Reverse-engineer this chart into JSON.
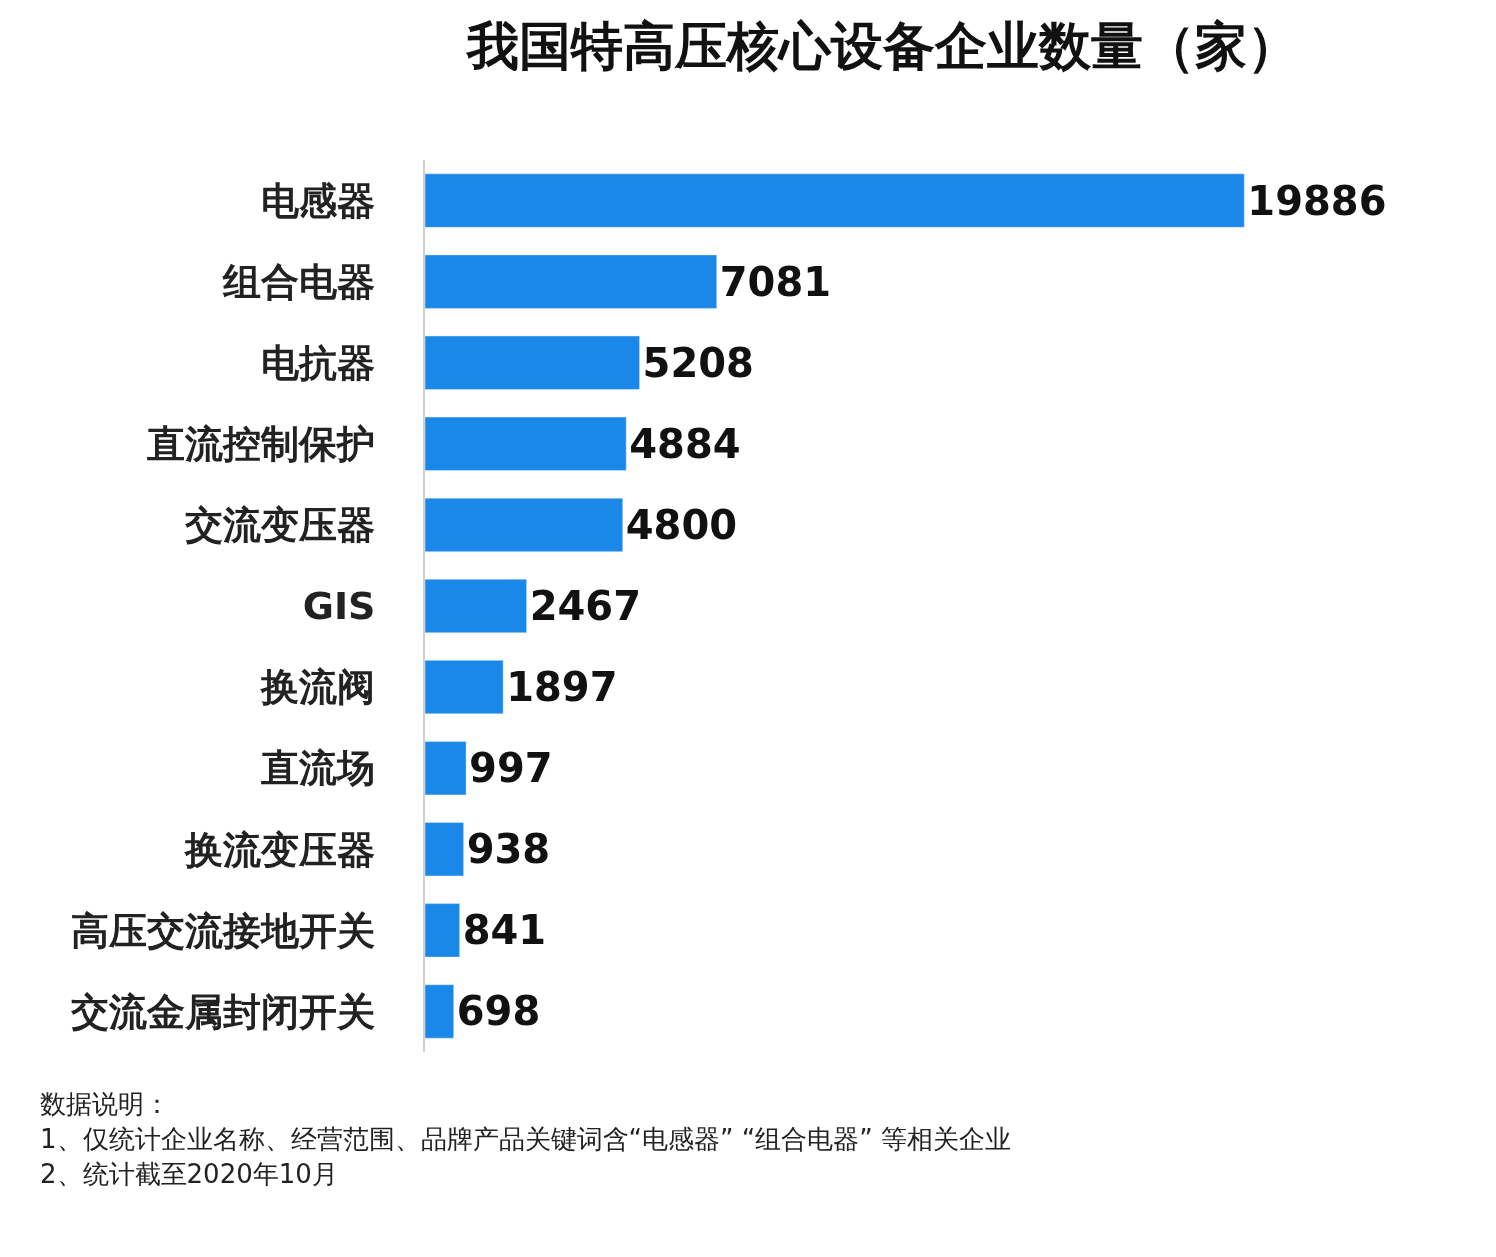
{
  "chart_data": {
    "type": "bar",
    "orientation": "horizontal",
    "title": "我国特高压核心设备企业数量（家）",
    "categories": [
      "电感器",
      "组合电器",
      "电抗器",
      "直流控制保护",
      "交流变压器",
      "GIS",
      "换流阀",
      "直流场",
      "换流变压器",
      "高压交流接地开关",
      "交流金属封闭开关"
    ],
    "values": [
      19886,
      7081,
      5208,
      4884,
      4800,
      2467,
      1897,
      997,
      938,
      841,
      698
    ],
    "color": "#1a88e8",
    "data_labels": true,
    "tick_labels": "y",
    "annotations": [
      "数据说明：",
      "1、仅统计企业名称、经营范围、品牌产品关键词含“电感器” “组合电器” 等相关企业",
      "2、统计截至2020年10月"
    ]
  }
}
